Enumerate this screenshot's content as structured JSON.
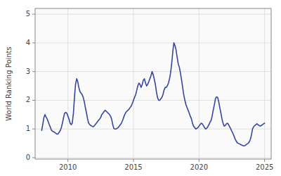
{
  "chart_data": {
    "type": "line",
    "ylabel": "World Ranking Points",
    "color": "#3645a0",
    "grid": true,
    "xlim": [
      2007.5,
      2025.5
    ],
    "xticks": [
      2010,
      2015,
      2020,
      2025
    ],
    "ylim": [
      -0.05,
      5.2
    ],
    "yticks": [
      0,
      1,
      2,
      3,
      4,
      5
    ],
    "x": [
      2008.0,
      2008.08,
      2008.17,
      2008.25,
      2008.33,
      2008.42,
      2008.5,
      2008.58,
      2008.67,
      2008.75,
      2008.83,
      2008.92,
      2009.0,
      2009.08,
      2009.17,
      2009.25,
      2009.33,
      2009.42,
      2009.5,
      2009.58,
      2009.67,
      2009.75,
      2009.83,
      2009.92,
      2010.0,
      2010.08,
      2010.17,
      2010.25,
      2010.33,
      2010.42,
      2010.5,
      2010.58,
      2010.67,
      2010.75,
      2010.83,
      2010.92,
      2011.0,
      2011.08,
      2011.17,
      2011.25,
      2011.33,
      2011.42,
      2011.5,
      2011.58,
      2011.67,
      2011.75,
      2011.83,
      2011.92,
      2012.0,
      2012.08,
      2012.17,
      2012.25,
      2012.33,
      2012.42,
      2012.5,
      2012.58,
      2012.67,
      2012.75,
      2012.83,
      2012.92,
      2013.0,
      2013.08,
      2013.17,
      2013.25,
      2013.33,
      2013.42,
      2013.5,
      2013.58,
      2013.67,
      2013.75,
      2013.83,
      2013.92,
      2014.0,
      2014.08,
      2014.17,
      2014.25,
      2014.33,
      2014.42,
      2014.5,
      2014.58,
      2014.67,
      2014.75,
      2014.83,
      2014.92,
      2015.0,
      2015.08,
      2015.17,
      2015.25,
      2015.33,
      2015.42,
      2015.5,
      2015.58,
      2015.67,
      2015.75,
      2015.83,
      2015.92,
      2016.0,
      2016.08,
      2016.17,
      2016.25,
      2016.33,
      2016.42,
      2016.5,
      2016.58,
      2016.67,
      2016.75,
      2016.83,
      2016.92,
      2017.0,
      2017.08,
      2017.17,
      2017.25,
      2017.33,
      2017.42,
      2017.5,
      2017.58,
      2017.67,
      2017.75,
      2017.83,
      2017.92,
      2018.0,
      2018.08,
      2018.17,
      2018.25,
      2018.33,
      2018.42,
      2018.5,
      2018.58,
      2018.67,
      2018.75,
      2018.83,
      2018.92,
      2019.0,
      2019.08,
      2019.17,
      2019.25,
      2019.33,
      2019.42,
      2019.5,
      2019.58,
      2019.67,
      2019.75,
      2019.83,
      2019.92,
      2020.0,
      2020.08,
      2020.17,
      2020.25,
      2020.33,
      2020.42,
      2020.5,
      2020.58,
      2020.67,
      2020.75,
      2020.83,
      2020.92,
      2021.0,
      2021.08,
      2021.17,
      2021.25,
      2021.33,
      2021.42,
      2021.5,
      2021.58,
      2021.67,
      2021.75,
      2021.83,
      2021.92,
      2022.0,
      2022.08,
      2022.17,
      2022.25,
      2022.33,
      2022.42,
      2022.5,
      2022.58,
      2022.67,
      2022.75,
      2022.83,
      2022.92,
      2023.0,
      2023.08,
      2023.17,
      2023.25,
      2023.33,
      2023.42,
      2023.5,
      2023.58,
      2023.67,
      2023.75,
      2023.83,
      2023.92,
      2024.0,
      2024.08,
      2024.17,
      2024.25,
      2024.33,
      2024.42,
      2024.5,
      2024.58,
      2024.67,
      2024.75,
      2024.83,
      2024.92,
      2025.0
    ],
    "values": [
      0.95,
      1.15,
      1.4,
      1.5,
      1.42,
      1.35,
      1.25,
      1.15,
      1.05,
      0.95,
      0.92,
      0.9,
      0.88,
      0.85,
      0.82,
      0.83,
      0.88,
      0.95,
      1.05,
      1.2,
      1.4,
      1.55,
      1.58,
      1.55,
      1.45,
      1.35,
      1.2,
      1.15,
      1.2,
      1.55,
      2.1,
      2.55,
      2.75,
      2.65,
      2.45,
      2.3,
      2.25,
      2.2,
      2.1,
      1.95,
      1.75,
      1.55,
      1.35,
      1.2,
      1.15,
      1.12,
      1.1,
      1.08,
      1.1,
      1.15,
      1.2,
      1.25,
      1.3,
      1.35,
      1.4,
      1.5,
      1.55,
      1.6,
      1.65,
      1.62,
      1.58,
      1.55,
      1.5,
      1.45,
      1.35,
      1.15,
      1.02,
      1.0,
      1.0,
      1.02,
      1.05,
      1.1,
      1.15,
      1.2,
      1.3,
      1.4,
      1.5,
      1.58,
      1.62,
      1.65,
      1.7,
      1.75,
      1.8,
      1.9,
      2.0,
      2.1,
      2.2,
      2.35,
      2.5,
      2.6,
      2.55,
      2.45,
      2.55,
      2.7,
      2.75,
      2.6,
      2.5,
      2.55,
      2.65,
      2.75,
      2.85,
      3.0,
      2.9,
      2.75,
      2.55,
      2.3,
      2.1,
      2.0,
      2.0,
      2.05,
      2.1,
      2.2,
      2.35,
      2.45,
      2.45,
      2.5,
      2.6,
      2.75,
      2.95,
      3.3,
      3.7,
      4.0,
      3.9,
      3.75,
      3.5,
      3.25,
      3.15,
      2.95,
      2.7,
      2.45,
      2.2,
      2.0,
      1.85,
      1.75,
      1.65,
      1.55,
      1.45,
      1.35,
      1.2,
      1.1,
      1.05,
      1.0,
      1.02,
      1.05,
      1.1,
      1.15,
      1.2,
      1.18,
      1.12,
      1.05,
      1.0,
      1.02,
      1.08,
      1.15,
      1.22,
      1.3,
      1.45,
      1.65,
      1.85,
      2.05,
      2.12,
      2.1,
      1.95,
      1.75,
      1.55,
      1.35,
      1.2,
      1.1,
      1.12,
      1.18,
      1.2,
      1.15,
      1.08,
      1.0,
      0.92,
      0.85,
      0.75,
      0.65,
      0.58,
      0.52,
      0.5,
      0.48,
      0.46,
      0.44,
      0.42,
      0.41,
      0.42,
      0.45,
      0.48,
      0.5,
      0.55,
      0.65,
      0.8,
      1.0,
      1.08,
      1.12,
      1.15,
      1.18,
      1.15,
      1.12,
      1.1,
      1.12,
      1.15,
      1.18,
      1.2
    ]
  }
}
